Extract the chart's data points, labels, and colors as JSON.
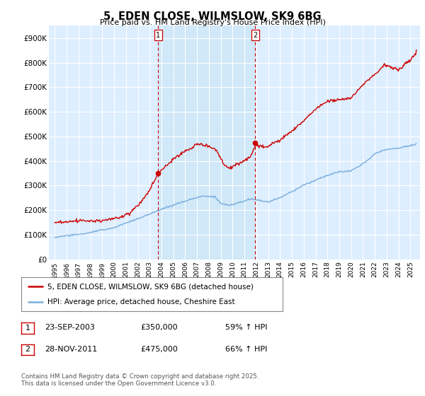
{
  "title": "5, EDEN CLOSE, WILMSLOW, SK9 6BG",
  "subtitle": "Price paid vs. HM Land Registry's House Price Index (HPI)",
  "legend_line1": "5, EDEN CLOSE, WILMSLOW, SK9 6BG (detached house)",
  "legend_line2": "HPI: Average price, detached house, Cheshire East",
  "annotation1_label": "1",
  "annotation1_date": "23-SEP-2003",
  "annotation1_price": "£350,000",
  "annotation1_hpi": "59% ↑ HPI",
  "annotation2_label": "2",
  "annotation2_date": "28-NOV-2011",
  "annotation2_price": "£475,000",
  "annotation2_hpi": "66% ↑ HPI",
  "footer": "Contains HM Land Registry data © Crown copyright and database right 2025.\nThis data is licensed under the Open Government Licence v3.0.",
  "line_color_red": "#cc0000",
  "line_color_blue": "#7aaddc",
  "shade_color": "#d0e8f8",
  "background_color": "#ddeeff",
  "plot_bg_color": "#ddeeff",
  "grid_color": "#ffffff",
  "ylim": [
    0,
    950000
  ],
  "yticks": [
    0,
    100000,
    200000,
    300000,
    400000,
    500000,
    600000,
    700000,
    800000,
    900000
  ],
  "ytick_labels": [
    "£0",
    "£100K",
    "£200K",
    "£300K",
    "£400K",
    "£500K",
    "£600K",
    "£700K",
    "£800K",
    "£900K"
  ],
  "sale1_x": 2003.73,
  "sale1_y": 350000,
  "sale2_x": 2011.91,
  "sale2_y": 475000,
  "xlim_left": 1994.5,
  "xlim_right": 2025.8
}
